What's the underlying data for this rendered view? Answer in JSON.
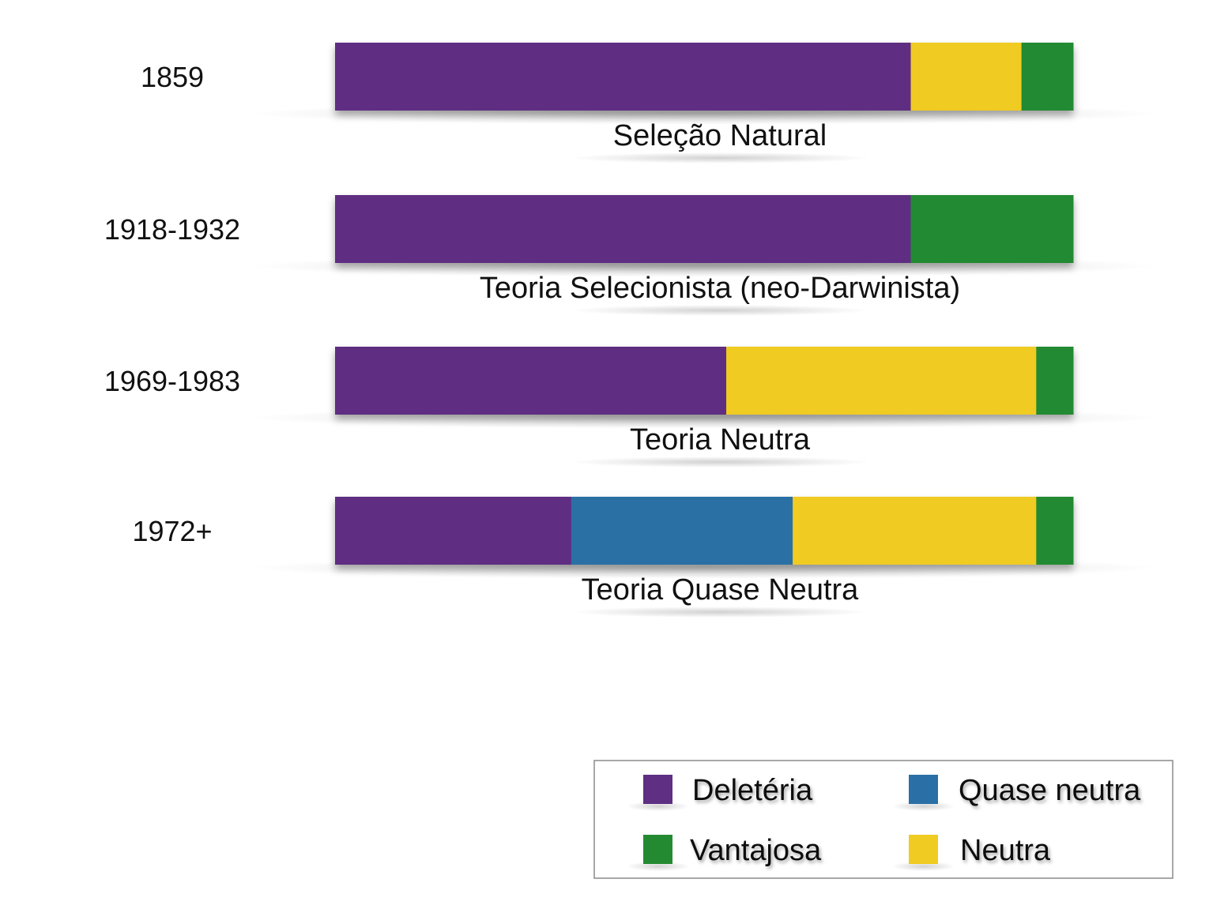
{
  "chart_data": {
    "type": "bar",
    "stacked": true,
    "orientation": "horizontal",
    "categories": [
      "1859",
      "1918-1932",
      "1969-1983",
      "1972+"
    ],
    "subtitles": [
      "Seleção  Natural",
      "Teoria Selecionista (neo-Darwinista)",
      "Teoria Neutra",
      "Teoria Quase Neutra"
    ],
    "series": [
      {
        "name": "Deletéria",
        "color": "#5e2f82",
        "values": [
          78,
          78,
          53,
          32
        ]
      },
      {
        "name": "Quase neutra",
        "color": "#2a6fa5",
        "values": [
          0,
          0,
          0,
          30
        ]
      },
      {
        "name": "Neutra",
        "color": "#f0cb21",
        "values": [
          15,
          0,
          42,
          33
        ]
      },
      {
        "name": "Vantajosa",
        "color": "#248a32",
        "values": [
          7,
          22,
          5,
          5
        ]
      }
    ],
    "xlim": [
      0,
      100
    ],
    "grid": false,
    "legend": {
      "position": "bottom-right",
      "order": [
        "Deletéria",
        "Quase neutra",
        "Vantajosa",
        "Neutra"
      ]
    }
  }
}
